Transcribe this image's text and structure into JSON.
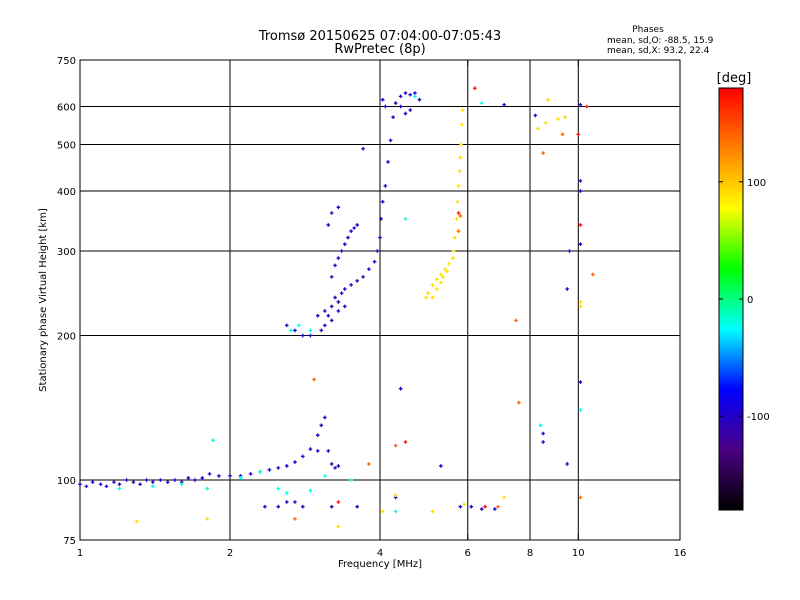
{
  "chart_data": {
    "type": "scatter",
    "title": "Tromsø 20150625 07:04:00-07:05:43",
    "subtitle": "RwPretec (8p)",
    "stats": {
      "heading": "Phases",
      "o_line": "mean, sd,O: -88.5, 15.9",
      "x_line": "mean, sd,X:  93.2, 22.4"
    },
    "xlabel": "Frequency [MHz]",
    "ylabel": "Stationary phase Virtual Height [km]",
    "x_scale": "log",
    "y_scale": "log",
    "xlim": [
      1,
      16
    ],
    "ylim": [
      75,
      750
    ],
    "x_ticks": [
      1,
      2,
      4,
      6,
      8,
      10,
      16
    ],
    "x_tick_labels": [
      "1",
      "2",
      "4",
      "6",
      "8",
      "10",
      "16"
    ],
    "y_ticks": [
      75,
      100,
      200,
      300,
      400,
      500,
      600,
      750
    ],
    "y_tick_labels": [
      "75",
      "100",
      "200",
      "300",
      "400",
      "500",
      "600",
      "750"
    ],
    "grid_x": [
      2,
      4,
      6,
      8,
      10
    ],
    "grid_y": [
      100,
      200,
      300,
      400,
      500,
      600
    ],
    "colorbar": {
      "label": "[deg]",
      "range": [
        -180,
        180
      ],
      "ticks": [
        -100,
        0,
        100
      ],
      "tick_labels": [
        "-100",
        "0",
        "100"
      ],
      "colors": [
        "#000000",
        "#4b0082",
        "#0000ff",
        "#00ffff",
        "#00ff00",
        "#ffff00",
        "#ff7f00",
        "#ff0000"
      ]
    },
    "series": [
      {
        "phase_deg": -100,
        "points": [
          [
            1.0,
            98
          ],
          [
            1.03,
            97
          ],
          [
            1.06,
            99
          ],
          [
            1.1,
            98
          ],
          [
            1.13,
            97
          ],
          [
            1.17,
            99
          ],
          [
            1.2,
            98
          ],
          [
            1.24,
            100
          ],
          [
            1.28,
            99
          ],
          [
            1.32,
            98
          ],
          [
            1.36,
            100
          ],
          [
            1.4,
            99
          ],
          [
            1.45,
            100
          ],
          [
            1.5,
            99
          ],
          [
            1.55,
            100
          ],
          [
            1.6,
            99
          ],
          [
            1.65,
            101
          ],
          [
            1.7,
            100
          ],
          [
            1.76,
            101
          ],
          [
            1.82,
            103
          ],
          [
            1.9,
            102
          ],
          [
            2.0,
            102
          ],
          [
            2.1,
            102
          ],
          [
            2.2,
            103
          ],
          [
            2.3,
            104
          ],
          [
            2.4,
            105
          ],
          [
            2.5,
            106
          ],
          [
            2.6,
            107
          ],
          [
            2.7,
            109
          ],
          [
            2.8,
            112
          ],
          [
            2.9,
            116
          ],
          [
            3.0,
            124
          ],
          [
            3.05,
            130
          ],
          [
            3.1,
            135
          ],
          [
            3.0,
            115
          ],
          [
            3.15,
            115
          ],
          [
            3.2,
            108
          ],
          [
            3.25,
            106
          ],
          [
            3.3,
            107
          ],
          [
            2.6,
            210
          ],
          [
            2.7,
            205
          ],
          [
            2.8,
            200
          ],
          [
            2.9,
            200
          ],
          [
            3.05,
            205
          ],
          [
            3.1,
            210
          ],
          [
            3.15,
            220
          ],
          [
            3.2,
            230
          ],
          [
            3.25,
            240
          ],
          [
            3.3,
            235
          ],
          [
            3.35,
            245
          ],
          [
            3.4,
            250
          ],
          [
            3.5,
            255
          ],
          [
            3.6,
            260
          ],
          [
            3.7,
            265
          ],
          [
            3.8,
            275
          ],
          [
            3.9,
            285
          ],
          [
            3.95,
            300
          ],
          [
            4.0,
            320
          ],
          [
            4.02,
            350
          ],
          [
            4.05,
            380
          ],
          [
            4.1,
            410
          ],
          [
            4.15,
            460
          ],
          [
            4.2,
            510
          ],
          [
            4.25,
            570
          ],
          [
            4.3,
            610
          ],
          [
            4.4,
            630
          ],
          [
            4.5,
            640
          ],
          [
            4.6,
            635
          ],
          [
            4.7,
            640
          ],
          [
            4.8,
            620
          ],
          [
            4.4,
            600
          ],
          [
            4.5,
            580
          ],
          [
            4.6,
            590
          ],
          [
            3.2,
            265
          ],
          [
            3.25,
            280
          ],
          [
            3.3,
            290
          ],
          [
            3.35,
            300
          ],
          [
            3.4,
            310
          ],
          [
            3.45,
            320
          ],
          [
            3.5,
            330
          ],
          [
            3.55,
            335
          ],
          [
            3.6,
            340
          ],
          [
            3.3,
            370
          ],
          [
            3.2,
            360
          ],
          [
            3.15,
            340
          ],
          [
            3.0,
            220
          ],
          [
            3.1,
            225
          ],
          [
            3.2,
            215
          ],
          [
            3.3,
            225
          ],
          [
            3.4,
            230
          ],
          [
            3.7,
            490
          ],
          [
            4.05,
            620
          ],
          [
            4.1,
            600
          ],
          [
            10.1,
            400
          ],
          [
            10.1,
            420
          ],
          [
            10.1,
            310
          ],
          [
            9.6,
            300
          ],
          [
            9.5,
            250
          ],
          [
            9.5,
            108
          ],
          [
            8.5,
            125
          ],
          [
            8.5,
            120
          ],
          [
            7.1,
            605
          ],
          [
            8.2,
            575
          ],
          [
            10.1,
            160
          ],
          [
            10.1,
            605
          ],
          [
            4.4,
            155
          ],
          [
            5.3,
            107
          ],
          [
            2.35,
            88
          ],
          [
            2.5,
            88
          ],
          [
            2.6,
            90
          ],
          [
            2.7,
            90
          ],
          [
            2.8,
            88
          ],
          [
            3.2,
            88
          ],
          [
            3.6,
            88
          ],
          [
            4.3,
            92
          ],
          [
            5.8,
            88
          ],
          [
            6.1,
            88
          ],
          [
            6.4,
            87
          ],
          [
            6.8,
            87
          ]
        ]
      },
      {
        "phase_deg": -20,
        "points": [
          [
            1.2,
            96
          ],
          [
            1.4,
            97
          ],
          [
            1.6,
            98
          ],
          [
            1.8,
            96
          ],
          [
            2.1,
            101
          ],
          [
            2.3,
            104
          ],
          [
            2.5,
            96
          ],
          [
            2.6,
            94
          ],
          [
            2.9,
            95
          ],
          [
            3.5,
            100
          ],
          [
            2.65,
            205
          ],
          [
            2.75,
            210
          ],
          [
            2.9,
            205
          ],
          [
            4.5,
            350
          ],
          [
            10.1,
            140
          ],
          [
            8.4,
            130
          ],
          [
            4.7,
            630
          ],
          [
            3.1,
            102
          ],
          [
            1.85,
            121
          ],
          [
            6.4,
            610
          ],
          [
            4.3,
            86
          ]
        ]
      },
      {
        "phase_deg": 90,
        "points": [
          [
            4.95,
            240
          ],
          [
            5.0,
            245
          ],
          [
            5.1,
            255
          ],
          [
            5.2,
            262
          ],
          [
            5.3,
            268
          ],
          [
            5.4,
            275
          ],
          [
            5.5,
            282
          ],
          [
            5.6,
            290
          ],
          [
            5.62,
            300
          ],
          [
            5.65,
            320
          ],
          [
            5.7,
            350
          ],
          [
            5.72,
            380
          ],
          [
            5.75,
            410
          ],
          [
            5.78,
            440
          ],
          [
            5.8,
            470
          ],
          [
            5.82,
            500
          ],
          [
            5.84,
            550
          ],
          [
            5.86,
            590
          ],
          [
            5.2,
            250
          ],
          [
            5.1,
            240
          ],
          [
            5.3,
            258
          ],
          [
            5.35,
            265
          ],
          [
            5.45,
            272
          ],
          [
            8.3,
            540
          ],
          [
            8.6,
            555
          ],
          [
            8.7,
            620
          ],
          [
            9.1,
            565
          ],
          [
            9.4,
            570
          ],
          [
            5.1,
            86
          ],
          [
            1.8,
            83
          ],
          [
            1.3,
            82
          ],
          [
            3.3,
            80
          ],
          [
            4.05,
            86
          ],
          [
            4.3,
            93
          ],
          [
            5.9,
            89
          ],
          [
            7.1,
            92
          ],
          [
            10.1,
            230
          ],
          [
            10.1,
            235
          ]
        ]
      },
      {
        "phase_deg": 140,
        "points": [
          [
            5.8,
            355
          ],
          [
            5.75,
            330
          ],
          [
            9.3,
            525
          ],
          [
            7.5,
            215
          ],
          [
            7.6,
            145
          ],
          [
            6.9,
            88
          ],
          [
            4.3,
            118
          ],
          [
            2.7,
            83
          ],
          [
            10.1,
            92
          ],
          [
            8.5,
            480
          ],
          [
            2.95,
            162
          ],
          [
            10.7,
            268
          ],
          [
            3.8,
            108
          ]
        ]
      },
      {
        "phase_deg": 175,
        "points": [
          [
            5.75,
            360
          ],
          [
            10.0,
            525
          ],
          [
            10.1,
            340
          ],
          [
            4.5,
            120
          ],
          [
            6.2,
            655
          ],
          [
            3.3,
            90
          ],
          [
            6.5,
            88
          ],
          [
            10.4,
            600
          ]
        ]
      }
    ]
  }
}
